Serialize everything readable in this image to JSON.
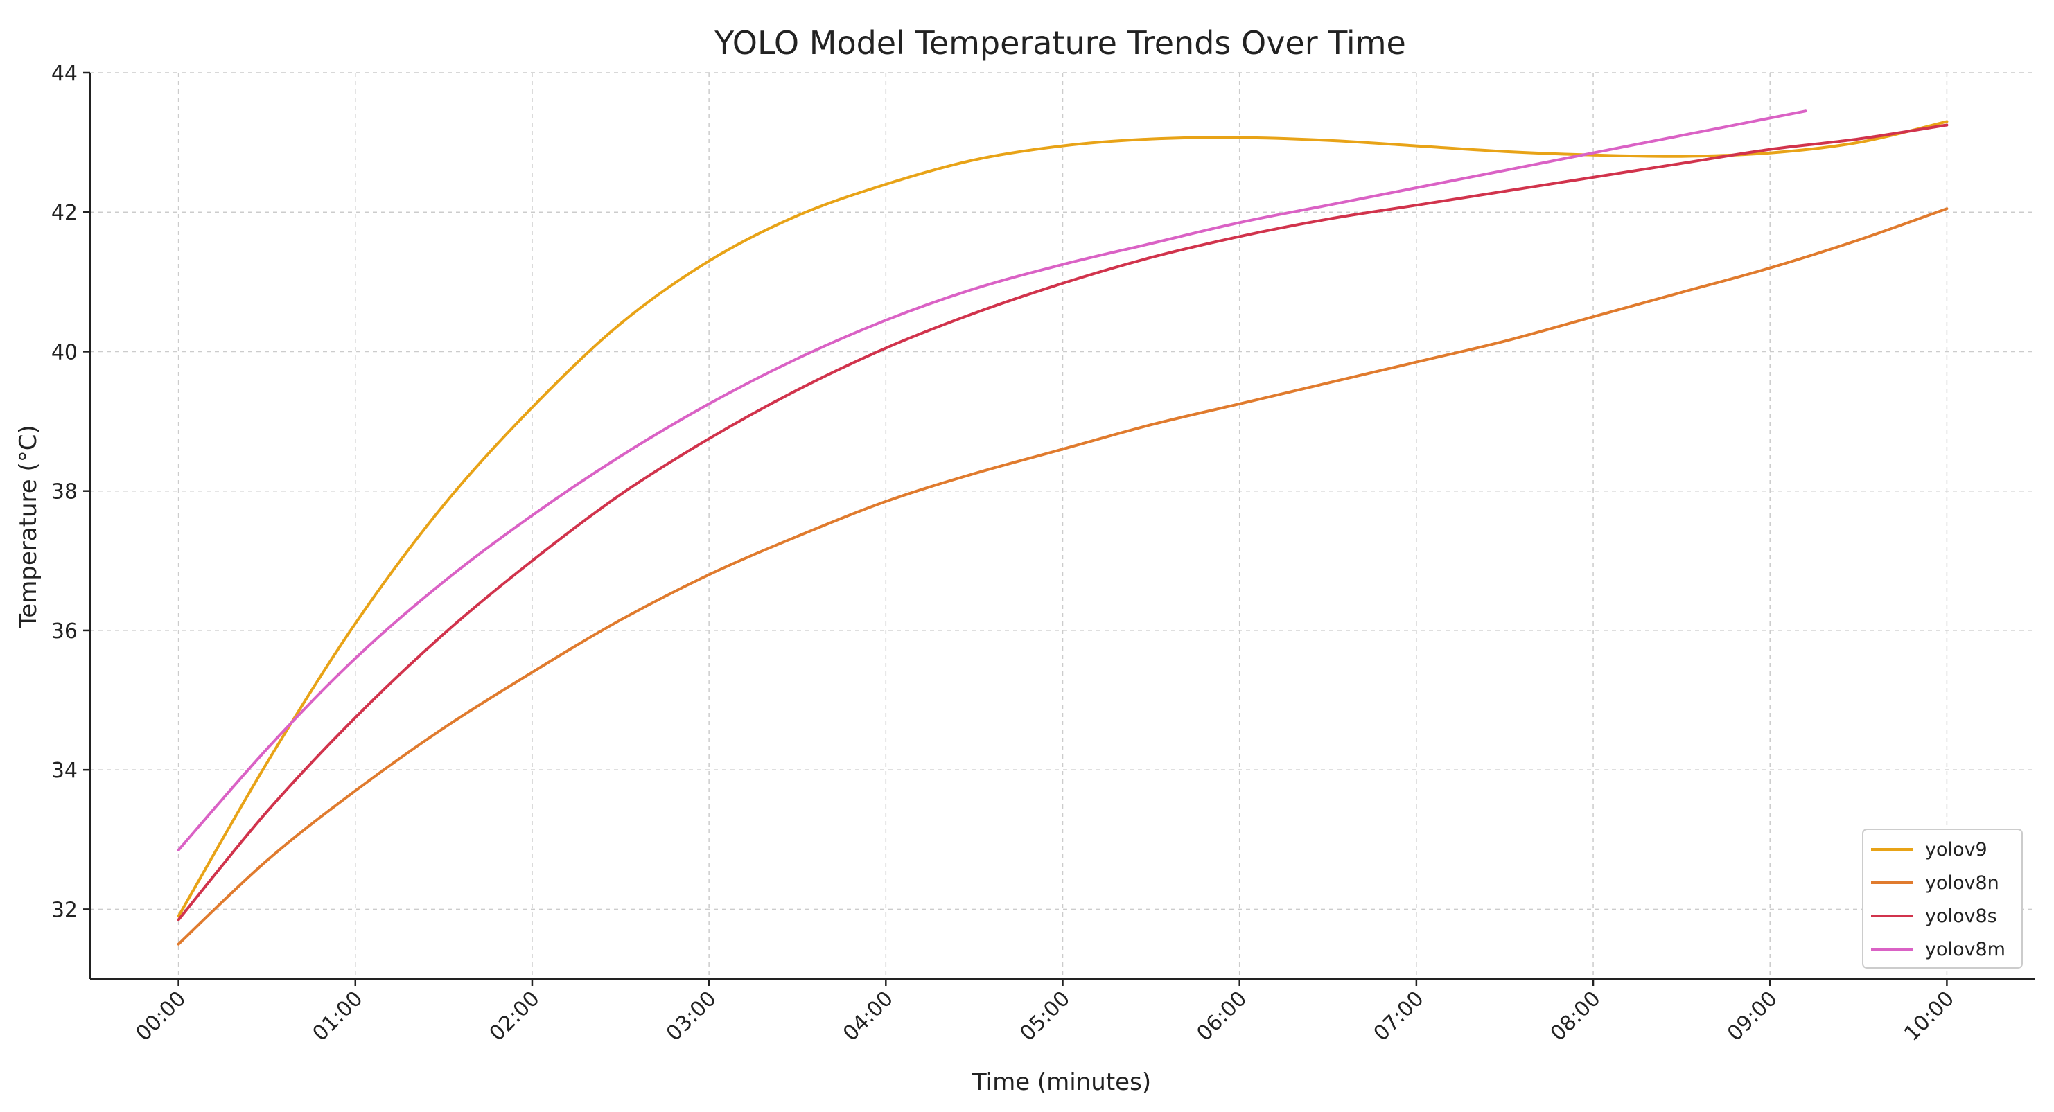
{
  "chart_data": {
    "type": "line",
    "title": "YOLO Model Temperature Trends Over Time",
    "xlabel": "Time (minutes)",
    "ylabel": "Temperature (°C)",
    "xlim": [
      -0.5,
      10.5
    ],
    "ylim": [
      31.0,
      44.0
    ],
    "grid": true,
    "legend_position": "bottom-right",
    "x_ticks": [
      {
        "value": 0,
        "label": "00:00"
      },
      {
        "value": 1,
        "label": "01:00"
      },
      {
        "value": 2,
        "label": "02:00"
      },
      {
        "value": 3,
        "label": "03:00"
      },
      {
        "value": 4,
        "label": "04:00"
      },
      {
        "value": 5,
        "label": "05:00"
      },
      {
        "value": 6,
        "label": "06:00"
      },
      {
        "value": 7,
        "label": "07:00"
      },
      {
        "value": 8,
        "label": "08:00"
      },
      {
        "value": 9,
        "label": "09:00"
      },
      {
        "value": 10,
        "label": "10:00"
      }
    ],
    "y_ticks": [
      {
        "value": 32,
        "label": "32"
      },
      {
        "value": 34,
        "label": "34"
      },
      {
        "value": 36,
        "label": "36"
      },
      {
        "value": 38,
        "label": "38"
      },
      {
        "value": 40,
        "label": "40"
      },
      {
        "value": 42,
        "label": "42"
      },
      {
        "value": 44,
        "label": "44"
      }
    ],
    "series": [
      {
        "name": "yolov9",
        "color": "#E8A317",
        "x": [
          0,
          0.5,
          1,
          1.5,
          2,
          2.5,
          3,
          3.5,
          4,
          4.5,
          5,
          5.5,
          6,
          6.5,
          7,
          7.5,
          8,
          8.5,
          9,
          9.5,
          10
        ],
        "values": [
          31.9,
          34.1,
          36.1,
          37.8,
          39.2,
          40.4,
          41.3,
          41.95,
          42.4,
          42.75,
          42.95,
          43.05,
          43.07,
          43.03,
          42.95,
          42.87,
          42.82,
          42.8,
          42.85,
          43.0,
          43.3
        ]
      },
      {
        "name": "yolov8n",
        "color": "#E07B2E",
        "x": [
          0,
          0.5,
          1,
          1.5,
          2,
          2.5,
          3,
          3.5,
          4,
          4.5,
          5,
          5.5,
          6,
          6.5,
          7,
          7.5,
          8,
          8.5,
          9,
          9.5,
          10
        ],
        "values": [
          31.5,
          32.7,
          33.7,
          34.6,
          35.4,
          36.15,
          36.8,
          37.35,
          37.85,
          38.25,
          38.6,
          38.95,
          39.25,
          39.55,
          39.85,
          40.15,
          40.5,
          40.85,
          41.2,
          41.6,
          42.05
        ]
      },
      {
        "name": "yolov8s",
        "color": "#D1334C",
        "x": [
          0,
          0.5,
          1,
          1.5,
          2,
          2.5,
          3,
          3.5,
          4,
          4.5,
          5,
          5.5,
          6,
          6.5,
          7,
          7.5,
          8,
          8.5,
          9,
          9.5,
          10
        ],
        "values": [
          31.85,
          33.4,
          34.75,
          35.95,
          37.0,
          37.95,
          38.75,
          39.45,
          40.05,
          40.55,
          40.98,
          41.35,
          41.65,
          41.9,
          42.1,
          42.3,
          42.5,
          42.7,
          42.9,
          43.05,
          43.25
        ]
      },
      {
        "name": "yolov8m",
        "color": "#DA62C5",
        "x": [
          0,
          0.5,
          1,
          1.5,
          2,
          2.5,
          3,
          3.5,
          4,
          4.5,
          5,
          5.5,
          6,
          6.5,
          7,
          7.5,
          8,
          8.5,
          9,
          9.2
        ],
        "values": [
          32.85,
          34.3,
          35.6,
          36.7,
          37.65,
          38.5,
          39.25,
          39.9,
          40.45,
          40.9,
          41.25,
          41.55,
          41.85,
          42.1,
          42.35,
          42.6,
          42.85,
          43.1,
          43.35,
          43.45
        ]
      }
    ]
  }
}
